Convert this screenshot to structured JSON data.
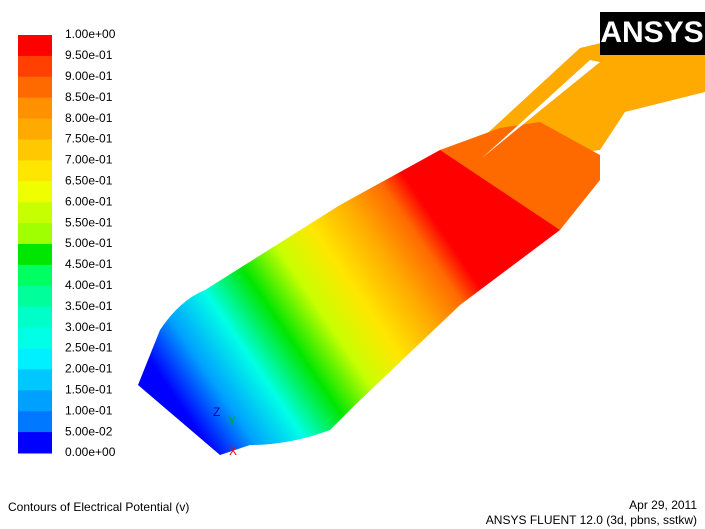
{
  "legend": {
    "labels": [
      "1.00e+00",
      "9.50e-01",
      "9.00e-01",
      "8.50e-01",
      "8.00e-01",
      "7.50e-01",
      "7.00e-01",
      "6.50e-01",
      "6.00e-01",
      "5.50e-01",
      "5.00e-01",
      "4.50e-01",
      "4.00e-01",
      "3.50e-01",
      "3.00e-01",
      "2.50e-01",
      "2.00e-01",
      "1.50e-01",
      "1.00e-01",
      "5.00e-02",
      "0.00e+00"
    ],
    "colors": [
      "#ff0000",
      "#ff4000",
      "#ff6a00",
      "#ff9000",
      "#ffaa00",
      "#ffc800",
      "#ffe600",
      "#f0ff00",
      "#c8ff00",
      "#a0ff00",
      "#00e600",
      "#00ff60",
      "#00ff9a",
      "#00ffc8",
      "#00ffe6",
      "#00f0ff",
      "#00c8ff",
      "#00a0ff",
      "#0078ff",
      "#0000ff"
    ]
  },
  "logo": "ANSYS",
  "axes": {
    "z": "Z",
    "y": "Y",
    "x": "X"
  },
  "footer": {
    "title": "Contours of Electrical Potential (v)",
    "date": "Apr 29, 2011",
    "solver": "ANSYS FLUENT 12.0 (3d, pbns, sstkw)"
  }
}
